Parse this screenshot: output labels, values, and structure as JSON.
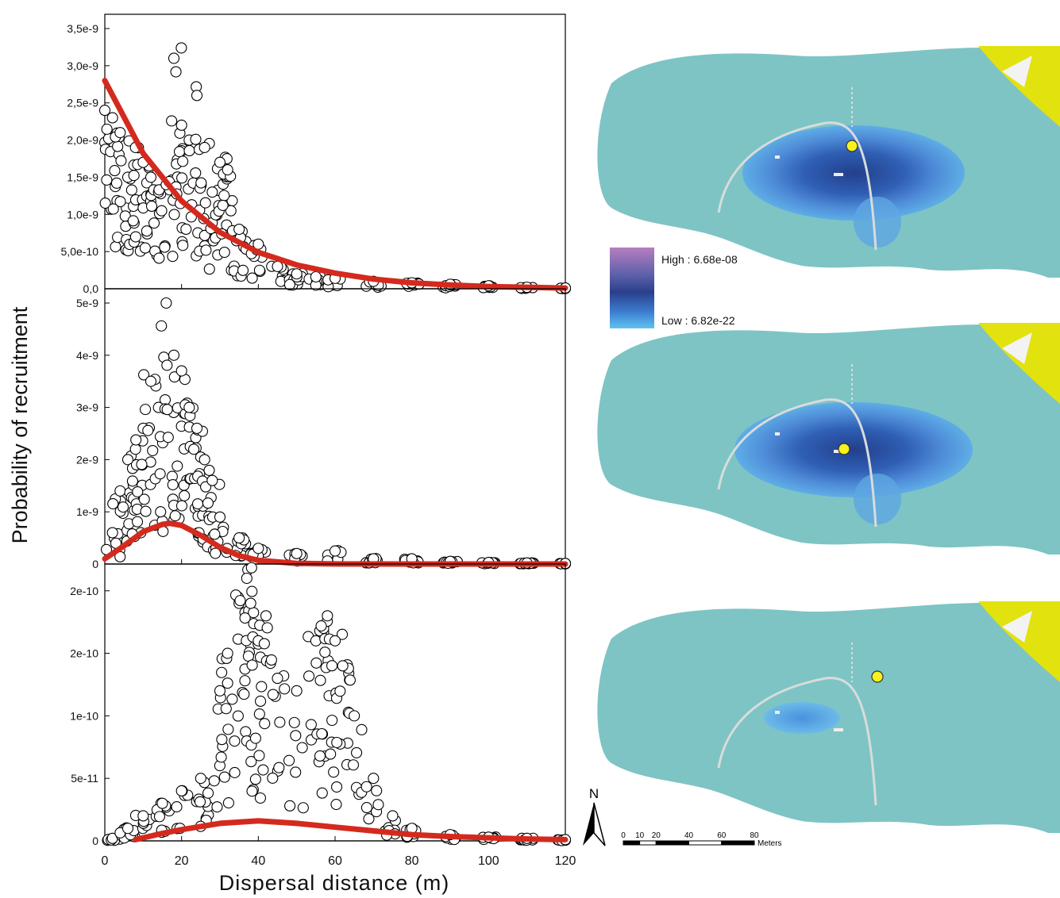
{
  "figure": {
    "ylabel": "Probability of recruitment",
    "xlabel": "Dispersal distance (m)",
    "xticks": [
      "0",
      "20",
      "40",
      "60",
      "80",
      "100",
      "120"
    ]
  },
  "colors": {
    "fit_line": "#d42a1e",
    "map_background": "#7ec4c4",
    "map_mid": "#4f8cd8",
    "map_high": "#1e3f8a",
    "map_low": "#5db8ec",
    "legend_top": "#b77ec0",
    "land_yellow": "#e2e20f",
    "seed_marker": "#f7f21c",
    "trail": "#d8dcdc"
  },
  "chart_data": [
    {
      "type": "scatter",
      "panel": "top",
      "title": "",
      "xlim": [
        0,
        120
      ],
      "ylim": [
        0,
        3.5e-09
      ],
      "yticks": [
        "0,0",
        "5,0e-10",
        "1,0e-9",
        "1,5e-9",
        "2,0e-9",
        "2,5e-9",
        "3,0e-9",
        "3,5e-9"
      ],
      "ytick_values": [
        0,
        5e-10,
        1e-09,
        1.5e-09,
        2e-09,
        2.5e-09,
        3e-09,
        3.5e-09
      ],
      "series": [
        {
          "values_x": [
            0,
            2,
            4,
            6,
            8,
            10,
            12,
            14,
            16,
            18,
            20,
            22,
            24,
            26,
            28,
            30,
            32,
            35,
            40,
            45,
            50,
            55,
            60,
            70,
            80,
            90,
            100,
            110,
            120
          ],
          "values_y": [
            2.4e-09,
            2.3e-09,
            2.1e-09,
            1.5e-09,
            1.9e-09,
            1.7e-09,
            1.5e-09,
            1.3e-09,
            1.4e-09,
            3.1e-09,
            2.2e-09,
            2e-09,
            2.6e-09,
            1.9e-09,
            1.3e-09,
            1.7e-09,
            1.6e-09,
            8e-10,
            6e-10,
            3e-10,
            2e-10,
            1.6e-10,
            1.4e-10,
            1e-10,
            8e-11,
            6e-11,
            4e-11,
            2e-11,
            1e-11
          ]
        },
        {
          "curve": "fit",
          "values_x": [
            0,
            10,
            20,
            30,
            40,
            50,
            60,
            70,
            80,
            90,
            100,
            110,
            120
          ],
          "values_y": [
            2.8e-09,
            1.82e-09,
            1.18e-09,
            7.6e-10,
            4.9e-10,
            3.2e-10,
            2.1e-10,
            1.3e-10,
            8e-11,
            5e-11,
            3e-11,
            2e-11,
            1e-11
          ]
        }
      ]
    },
    {
      "type": "scatter",
      "panel": "middle",
      "title": "",
      "xlim": [
        0,
        120
      ],
      "ylim": [
        0,
        5e-09
      ],
      "yticks": [
        "0",
        "1e-9",
        "2e-9",
        "3e-9",
        "4e-9",
        "5e-9"
      ],
      "ytick_values": [
        0,
        1e-09,
        2e-09,
        3e-09,
        4e-09,
        5e-09
      ],
      "series": [
        {
          "values_x": [
            2,
            4,
            6,
            8,
            10,
            12,
            14,
            16,
            18,
            20,
            22,
            24,
            26,
            28,
            30,
            35,
            40,
            50,
            60,
            70,
            80,
            90,
            100,
            110,
            120
          ],
          "values_y": [
            6e-10,
            1.4e-09,
            2e-09,
            2.2e-09,
            2.6e-09,
            3.5e-09,
            3e-09,
            5e-09,
            4e-09,
            3.7e-09,
            3e-09,
            2.6e-09,
            2e-09,
            1.6e-09,
            9e-10,
            5e-10,
            3e-10,
            2e-10,
            2.5e-10,
            1e-10,
            1e-10,
            5e-11,
            3e-11,
            2e-11,
            1e-11
          ]
        },
        {
          "curve": "fit",
          "values_x": [
            0,
            5,
            10,
            15,
            17,
            20,
            25,
            30,
            35,
            40,
            50,
            60,
            80,
            100,
            120
          ],
          "values_y": [
            1e-10,
            3.5e-10,
            6.2e-10,
            7.6e-10,
            7.8e-10,
            7.4e-10,
            5.5e-10,
            3.2e-10,
            1.6e-10,
            7e-11,
            1.2e-11,
            2e-12,
            0,
            0,
            0
          ]
        }
      ]
    },
    {
      "type": "scatter",
      "panel": "bottom",
      "title": "",
      "xlim": [
        0,
        120
      ],
      "ylim": [
        0,
        2.1e-10
      ],
      "yticks": [
        "0",
        "5e-11",
        "1e-10",
        "2e-10",
        "2e-10"
      ],
      "ytick_values": [
        0,
        5e-11,
        1e-10,
        1.5e-10,
        2e-10
      ],
      "series": [
        {
          "values_x": [
            2,
            6,
            10,
            15,
            20,
            25,
            30,
            32,
            35,
            37,
            38,
            40,
            42,
            45,
            50,
            55,
            57,
            58,
            60,
            62,
            65,
            70,
            75,
            80,
            90,
            100,
            110,
            120
          ],
          "values_y": [
            2e-12,
            1e-11,
            2e-11,
            3e-11,
            4e-11,
            5e-11,
            1.2e-10,
            1.5e-10,
            1.9e-10,
            2.1e-10,
            1.9e-10,
            1.6e-10,
            1.8e-10,
            1.3e-10,
            1.2e-10,
            1.6e-10,
            1.7e-10,
            1.8e-10,
            1.6e-10,
            1.4e-10,
            1e-10,
            5e-11,
            2e-11,
            1e-11,
            5e-12,
            3e-12,
            2e-12,
            1e-12
          ]
        },
        {
          "curve": "fit",
          "values_x": [
            8,
            15,
            20,
            30,
            40,
            50,
            60,
            70,
            80,
            90,
            100,
            110,
            120
          ],
          "values_y": [
            1e-12,
            6e-12,
            9e-12,
            1.4e-11,
            1.6e-11,
            1.4e-11,
            1.1e-11,
            8e-12,
            5e-12,
            3.5e-12,
            2.5e-12,
            1.5e-12,
            1e-12
          ]
        }
      ]
    }
  ],
  "map": {
    "legend_high": "High : 6.68e-08",
    "legend_low": "Low : 6.82e-22",
    "north_label": "N",
    "scale_ticks": [
      "0",
      "10",
      "20",
      "40",
      "60",
      "80"
    ],
    "scale_unit": "Meters"
  }
}
